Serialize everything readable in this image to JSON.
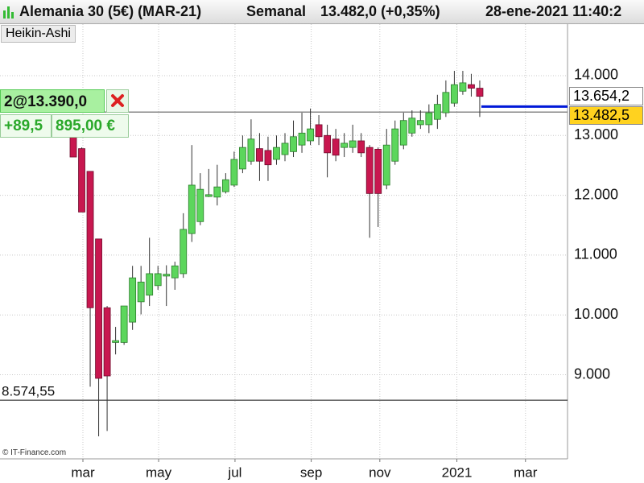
{
  "chart_data": {
    "type": "candlestick",
    "instrument": "Alemania 30 (5€) (MAR-21)",
    "period": "Semanal",
    "last_quote": "13.482,0 (+0,35%)",
    "timestamp": "28-ene-2021 11:40:2",
    "style_label": "Heikin-Ashi",
    "source": "© IT-Finance.com",
    "categories": [
      null,
      null,
      null,
      null,
      null,
      null,
      null,
      null,
      null,
      null,
      null,
      null,
      null,
      null,
      null,
      null,
      null,
      null,
      null,
      null,
      null,
      null,
      null,
      null,
      null,
      null,
      null,
      null,
      null,
      null,
      null,
      null,
      null,
      null,
      null,
      null,
      null,
      null,
      null,
      null,
      null,
      null,
      null,
      null,
      null,
      null,
      null,
      null,
      null
    ],
    "open": [
      13050,
      12780,
      12400,
      11270,
      10120,
      9540,
      9540,
      9880,
      10220,
      10330,
      10490,
      10650,
      10620,
      10690,
      11360,
      11560,
      11980,
      11970,
      12060,
      12170,
      12440,
      12570,
      12780,
      12750,
      12600,
      12680,
      12730,
      12840,
      12910,
      13180,
      13000,
      12940,
      12800,
      12800,
      12910,
      12800,
      12770,
      12170,
      12570,
      12840,
      13040,
      13180,
      13180,
      13270,
      13380,
      13540,
      13740,
      13850,
      13790
    ],
    "high": [
      13200,
      12800,
      12400,
      11270,
      10150,
      9800,
      10150,
      10820,
      10820,
      11290,
      10820,
      10830,
      10890,
      11700,
      12840,
      12370,
      12440,
      12510,
      12370,
      12730,
      13000,
      13270,
      13040,
      12980,
      13000,
      13040,
      13250,
      13380,
      13450,
      13340,
      13180,
      13110,
      13040,
      13180,
      13040,
      12840,
      12800,
      13110,
      13250,
      13380,
      13420,
      13420,
      13520,
      13680,
      13920,
      14080,
      14080,
      14030,
      13920
    ],
    "low": [
      12640,
      11720,
      8800,
      7970,
      8060,
      9340,
      9500,
      9750,
      10010,
      10150,
      10420,
      10150,
      10420,
      10620,
      11220,
      11500,
      11970,
      11830,
      12030,
      12140,
      12370,
      12510,
      12240,
      12240,
      12510,
      12570,
      12640,
      12710,
      12840,
      12840,
      12300,
      12570,
      12640,
      12710,
      12640,
      11290,
      11470,
      12100,
      12510,
      12770,
      12980,
      13110,
      13040,
      13110,
      13310,
      13480,
      13680,
      13650,
      13310
    ],
    "close": [
      12640,
      11720,
      10120,
      8940,
      8980,
      9570,
      10150,
      10620,
      10550,
      10690,
      10690,
      10680,
      10820,
      11430,
      12170,
      12100,
      12010,
      12140,
      12260,
      12600,
      12800,
      12940,
      12570,
      12510,
      12800,
      12870,
      12980,
      13040,
      13110,
      12980,
      12710,
      12670,
      12870,
      12910,
      12710,
      12030,
      12030,
      12840,
      13110,
      13250,
      13290,
      13250,
      13380,
      13520,
      13720,
      13850,
      13880,
      13790,
      13654.2
    ],
    "up_color": "#5cd65c",
    "down_color": "#c8174f",
    "ylim": [
      7594,
      14861
    ],
    "yticks": [
      {
        "value": 9000,
        "label": "9.000"
      },
      {
        "value": 10000,
        "label": "10.000"
      },
      {
        "value": 11000,
        "label": "11.000"
      },
      {
        "value": 12000,
        "label": "12.000"
      },
      {
        "value": 13000,
        "label": "13.000"
      },
      {
        "value": 14000,
        "label": "14.000"
      }
    ],
    "xticks": [
      {
        "value": 1.14,
        "label": "mar"
      },
      {
        "value": 10.08,
        "label": "may"
      },
      {
        "value": 19.1,
        "label": "jul"
      },
      {
        "value": 28.1,
        "label": "sep"
      },
      {
        "value": 36.2,
        "label": "nov"
      },
      {
        "value": 45.3,
        "label": "2021"
      },
      {
        "value": 53.4,
        "label": "mar"
      }
    ],
    "grid": true,
    "last_close_marker": {
      "value": 13654.2,
      "label": "13.654,2"
    },
    "current_price": {
      "value": 13482.5,
      "label": "13.482,5",
      "color": "#0018d8"
    },
    "support_level": {
      "value": 8574.55,
      "label": "8.574,55"
    },
    "position": {
      "value": 13390,
      "label": "2@13.390,0",
      "pnl_points": "+89,5",
      "pnl_value": "895,00 €"
    }
  }
}
